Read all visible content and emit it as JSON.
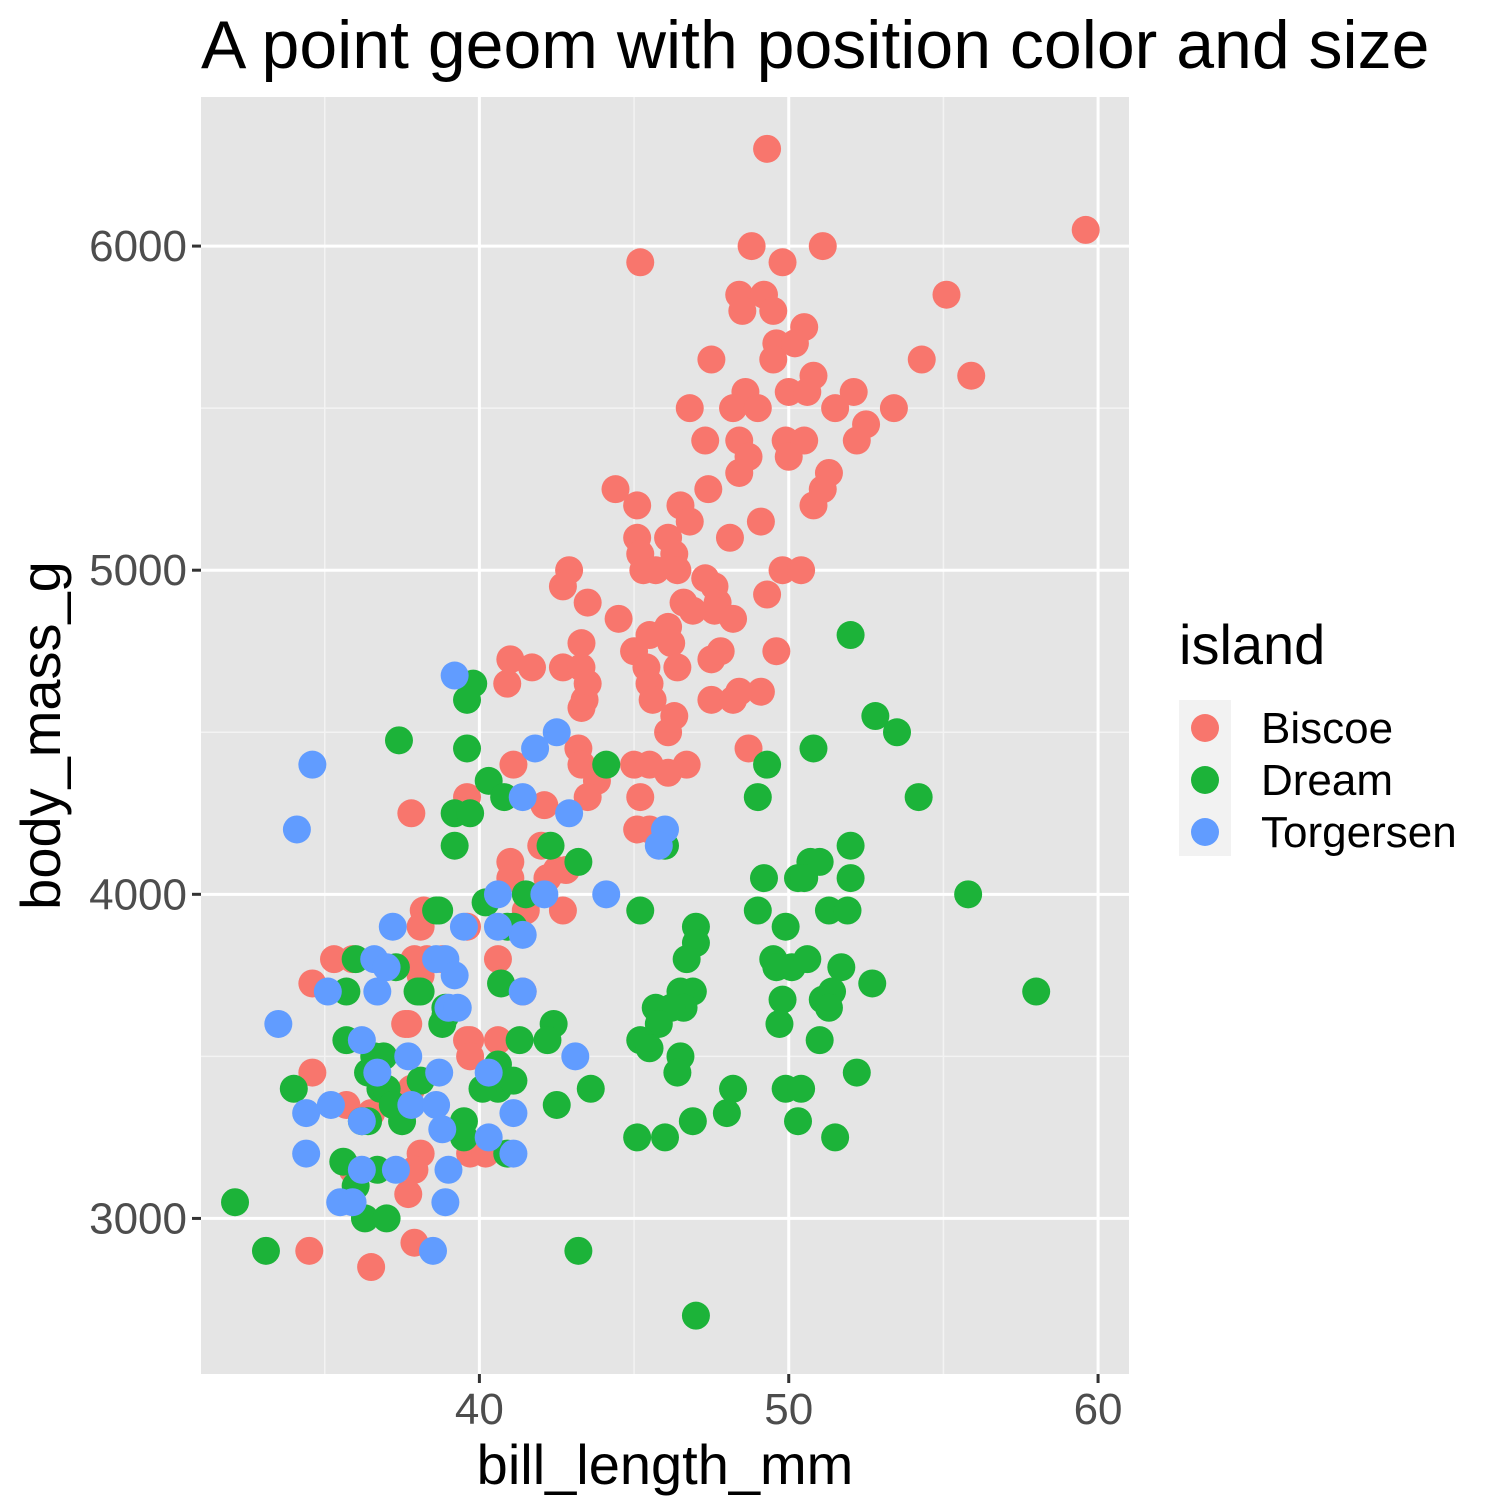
{
  "chart_data": {
    "type": "scatter",
    "title": "A point geom with position color and size",
    "xlabel": "bill_length_mm",
    "ylabel": "body_mass_g",
    "xlim": [
      31.0,
      61.0
    ],
    "ylim": [
      2520,
      6460
    ],
    "x_ticks": [
      40,
      50,
      60
    ],
    "y_ticks": [
      3000,
      4000,
      5000,
      6000
    ],
    "x_minor_ticks": [
      35,
      45,
      55
    ],
    "y_minor_ticks": [
      3500,
      4500,
      5500
    ],
    "grid": true,
    "legend": {
      "title": "island",
      "position": "right"
    },
    "series": [
      {
        "name": "Biscoe",
        "color": "#F8766D",
        "points": [
          [
            49.3,
            6300
          ],
          [
            59.6,
            6050
          ],
          [
            48.8,
            6000
          ],
          [
            51.1,
            6000
          ],
          [
            45.2,
            5950
          ],
          [
            49.8,
            5950
          ],
          [
            48.4,
            5850
          ],
          [
            49.2,
            5850
          ],
          [
            55.1,
            5850
          ],
          [
            48.5,
            5800
          ],
          [
            49.5,
            5800
          ],
          [
            50.5,
            5750
          ],
          [
            49.6,
            5700
          ],
          [
            50.2,
            5700
          ],
          [
            47.5,
            5650
          ],
          [
            49.5,
            5650
          ],
          [
            54.3,
            5650
          ],
          [
            50.8,
            5600
          ],
          [
            55.9,
            5600
          ],
          [
            48.6,
            5550
          ],
          [
            50.0,
            5550
          ],
          [
            50.6,
            5550
          ],
          [
            52.1,
            5550
          ],
          [
            46.8,
            5500
          ],
          [
            48.2,
            5500
          ],
          [
            49.0,
            5500
          ],
          [
            51.5,
            5500
          ],
          [
            53.4,
            5500
          ],
          [
            52.5,
            5450
          ],
          [
            47.3,
            5400
          ],
          [
            48.4,
            5400
          ],
          [
            49.9,
            5400
          ],
          [
            50.5,
            5400
          ],
          [
            52.2,
            5400
          ],
          [
            48.7,
            5350
          ],
          [
            50.0,
            5350
          ],
          [
            48.4,
            5300
          ],
          [
            51.3,
            5300
          ],
          [
            44.4,
            5250
          ],
          [
            47.4,
            5250
          ],
          [
            51.1,
            5250
          ],
          [
            45.1,
            5200
          ],
          [
            46.5,
            5200
          ],
          [
            50.8,
            5200
          ],
          [
            46.8,
            5150
          ],
          [
            49.1,
            5150
          ],
          [
            45.1,
            5100
          ],
          [
            46.1,
            5100
          ],
          [
            48.1,
            5100
          ],
          [
            45.2,
            5050
          ],
          [
            46.3,
            5050
          ],
          [
            45.3,
            5000
          ],
          [
            45.7,
            5000
          ],
          [
            46.4,
            5000
          ],
          [
            42.9,
            5000
          ],
          [
            49.8,
            5000
          ],
          [
            50.4,
            5000
          ],
          [
            42.7,
            4950
          ],
          [
            47.6,
            4950
          ],
          [
            47.3,
            4975
          ],
          [
            43.5,
            4900
          ],
          [
            46.6,
            4900
          ],
          [
            47.7,
            4900
          ],
          [
            46.9,
            4875
          ],
          [
            47.6,
            4875
          ],
          [
            44.5,
            4850
          ],
          [
            48.2,
            4850
          ],
          [
            49.3,
            4925
          ],
          [
            46.1,
            4825
          ],
          [
            45.5,
            4800
          ],
          [
            43.3,
            4775
          ],
          [
            46.2,
            4775
          ],
          [
            41.0,
            4725
          ],
          [
            47.5,
            4725
          ],
          [
            49.6,
            4750
          ],
          [
            45.0,
            4750
          ],
          [
            47.8,
            4750
          ],
          [
            41.7,
            4700
          ],
          [
            42.7,
            4700
          ],
          [
            43.3,
            4700
          ],
          [
            45.4,
            4700
          ],
          [
            46.4,
            4700
          ],
          [
            40.9,
            4650
          ],
          [
            43.5,
            4650
          ],
          [
            45.5,
            4650
          ],
          [
            43.4,
            4600
          ],
          [
            45.6,
            4600
          ],
          [
            47.5,
            4600
          ],
          [
            48.2,
            4600
          ],
          [
            43.3,
            4575
          ],
          [
            46.3,
            4550
          ],
          [
            49.1,
            4625
          ],
          [
            48.4,
            4625
          ],
          [
            46.1,
            4500
          ],
          [
            43.2,
            4450
          ],
          [
            48.7,
            4450
          ],
          [
            41.1,
            4400
          ],
          [
            43.3,
            4400
          ],
          [
            45.0,
            4400
          ],
          [
            45.5,
            4400
          ],
          [
            46.7,
            4400
          ],
          [
            46.1,
            4375
          ],
          [
            43.8,
            4350
          ],
          [
            43.5,
            4300
          ],
          [
            45.2,
            4300
          ],
          [
            39.6,
            4300
          ],
          [
            42.1,
            4275
          ],
          [
            37.8,
            4250
          ],
          [
            45.1,
            4200
          ],
          [
            45.5,
            4200
          ],
          [
            42.0,
            4150
          ],
          [
            41.0,
            4100
          ],
          [
            42.8,
            4075
          ],
          [
            42.5,
            4075
          ],
          [
            41.0,
            4050
          ],
          [
            42.2,
            4050
          ],
          [
            41.5,
            3950
          ],
          [
            38.2,
            3950
          ],
          [
            42.7,
            3950
          ],
          [
            39.6,
            3900
          ],
          [
            38.1,
            3900
          ],
          [
            40.6,
            3800
          ],
          [
            38.3,
            3800
          ],
          [
            37.9,
            3800
          ],
          [
            35.3,
            3800
          ],
          [
            35.9,
            3800
          ],
          [
            38.8,
            3800
          ],
          [
            38.1,
            3750
          ],
          [
            34.6,
            3725
          ],
          [
            41.4,
            3700
          ],
          [
            37.6,
            3600
          ],
          [
            37.7,
            3600
          ],
          [
            39.6,
            3550
          ],
          [
            40.6,
            3550
          ],
          [
            39.7,
            3550
          ],
          [
            39.7,
            3500
          ],
          [
            34.6,
            3450
          ],
          [
            37.8,
            3400
          ],
          [
            35.7,
            3350
          ],
          [
            36.5,
            3325
          ],
          [
            35.9,
            3150
          ],
          [
            38.1,
            3200
          ],
          [
            39.7,
            3200
          ],
          [
            40.2,
            3200
          ],
          [
            37.9,
            3150
          ],
          [
            37.7,
            3075
          ],
          [
            34.5,
            2900
          ],
          [
            37.9,
            2925
          ],
          [
            36.5,
            2850
          ]
        ]
      },
      {
        "name": "Dream",
        "color": "#1CB339",
        "points": [
          [
            52.0,
            4800
          ],
          [
            52.8,
            4550
          ],
          [
            53.5,
            4500
          ],
          [
            50.8,
            4450
          ],
          [
            54.2,
            4300
          ],
          [
            49.3,
            4400
          ],
          [
            49.0,
            4300
          ],
          [
            52.0,
            4150
          ],
          [
            50.7,
            4100
          ],
          [
            51.0,
            4100
          ],
          [
            50.3,
            4050
          ],
          [
            50.5,
            4050
          ],
          [
            52.0,
            4050
          ],
          [
            49.2,
            4050
          ],
          [
            55.8,
            4000
          ],
          [
            45.2,
            3950
          ],
          [
            49.0,
            3950
          ],
          [
            51.3,
            3950
          ],
          [
            51.9,
            3950
          ],
          [
            47.0,
            3900
          ],
          [
            49.9,
            3900
          ],
          [
            47.0,
            3850
          ],
          [
            49.5,
            3800
          ],
          [
            46.7,
            3800
          ],
          [
            50.1,
            3775
          ],
          [
            50.6,
            3800
          ],
          [
            49.6,
            3775
          ],
          [
            51.7,
            3775
          ],
          [
            52.7,
            3725
          ],
          [
            58.0,
            3700
          ],
          [
            46.9,
            3700
          ],
          [
            46.5,
            3700
          ],
          [
            49.8,
            3675
          ],
          [
            51.4,
            3700
          ],
          [
            51.1,
            3675
          ],
          [
            46.6,
            3650
          ],
          [
            45.7,
            3650
          ],
          [
            46.2,
            3650
          ],
          [
            51.3,
            3650
          ],
          [
            45.8,
            3600
          ],
          [
            49.7,
            3600
          ],
          [
            45.2,
            3550
          ],
          [
            45.5,
            3525
          ],
          [
            51.0,
            3550
          ],
          [
            46.5,
            3500
          ],
          [
            46.4,
            3450
          ],
          [
            52.2,
            3450
          ],
          [
            48.2,
            3400
          ],
          [
            49.9,
            3400
          ],
          [
            50.4,
            3400
          ],
          [
            48.0,
            3325
          ],
          [
            46.9,
            3300
          ],
          [
            50.3,
            3300
          ],
          [
            45.1,
            3250
          ],
          [
            46.0,
            3250
          ],
          [
            51.5,
            3250
          ],
          [
            43.2,
            2900
          ],
          [
            47.0,
            2700
          ],
          [
            39.8,
            4650
          ],
          [
            39.6,
            4600
          ],
          [
            37.4,
            4475
          ],
          [
            39.6,
            4450
          ],
          [
            40.3,
            4350
          ],
          [
            40.8,
            4300
          ],
          [
            39.2,
            4250
          ],
          [
            39.7,
            4250
          ],
          [
            42.3,
            4150
          ],
          [
            39.2,
            4150
          ],
          [
            46.0,
            4150
          ],
          [
            43.2,
            4100
          ],
          [
            40.2,
            3975
          ],
          [
            41.5,
            4000
          ],
          [
            38.6,
            3950
          ],
          [
            40.9,
            3900
          ],
          [
            41.1,
            3900
          ],
          [
            44.1,
            4400
          ],
          [
            42.4,
            3600
          ],
          [
            36.0,
            3800
          ],
          [
            37.3,
            3775
          ],
          [
            35.7,
            3700
          ],
          [
            38.1,
            3700
          ],
          [
            40.7,
            3725
          ],
          [
            38.9,
            3650
          ],
          [
            38.9,
            3625
          ],
          [
            38.8,
            3600
          ],
          [
            41.3,
            3550
          ],
          [
            42.2,
            3550
          ],
          [
            35.7,
            3550
          ],
          [
            40.6,
            3475
          ],
          [
            36.6,
            3500
          ],
          [
            36.9,
            3500
          ],
          [
            36.4,
            3450
          ],
          [
            40.6,
            3400
          ],
          [
            38.1,
            3425
          ],
          [
            41.1,
            3425
          ],
          [
            36.8,
            3400
          ],
          [
            32.1,
            3050
          ],
          [
            37.0,
            3400
          ],
          [
            40.1,
            3400
          ],
          [
            43.6,
            3400
          ],
          [
            42.5,
            3350
          ],
          [
            34.0,
            3400
          ],
          [
            37.2,
            3350
          ],
          [
            36.4,
            3300
          ],
          [
            37.5,
            3300
          ],
          [
            39.5,
            3300
          ],
          [
            36.2,
            3300
          ],
          [
            39.5,
            3250
          ],
          [
            35.6,
            3175
          ],
          [
            36.7,
            3150
          ],
          [
            36.0,
            3100
          ],
          [
            40.9,
            3200
          ],
          [
            36.3,
            3000
          ],
          [
            37.0,
            3000
          ],
          [
            33.1,
            2900
          ],
          [
            38.0,
            3700
          ],
          [
            38.7,
            3950
          ]
        ]
      },
      {
        "name": "Torgersen",
        "color": "#619CFF",
        "points": [
          [
            39.2,
            4675
          ],
          [
            34.6,
            4400
          ],
          [
            42.5,
            4500
          ],
          [
            41.8,
            4450
          ],
          [
            41.4,
            4300
          ],
          [
            42.9,
            4250
          ],
          [
            34.1,
            4200
          ],
          [
            46.0,
            4200
          ],
          [
            45.8,
            4150
          ],
          [
            44.1,
            4000
          ],
          [
            40.6,
            4000
          ],
          [
            42.1,
            4000
          ],
          [
            37.2,
            3900
          ],
          [
            39.5,
            3900
          ],
          [
            41.4,
            3875
          ],
          [
            40.6,
            3900
          ],
          [
            36.6,
            3800
          ],
          [
            37.0,
            3775
          ],
          [
            38.6,
            3800
          ],
          [
            38.9,
            3800
          ],
          [
            39.2,
            3750
          ],
          [
            41.4,
            3700
          ],
          [
            35.1,
            3700
          ],
          [
            36.7,
            3700
          ],
          [
            39.0,
            3650
          ],
          [
            39.3,
            3650
          ],
          [
            33.5,
            3600
          ],
          [
            36.2,
            3550
          ],
          [
            43.1,
            3500
          ],
          [
            37.7,
            3500
          ],
          [
            38.7,
            3450
          ],
          [
            40.3,
            3450
          ],
          [
            36.7,
            3450
          ],
          [
            35.2,
            3350
          ],
          [
            37.8,
            3350
          ],
          [
            38.6,
            3350
          ],
          [
            41.1,
            3325
          ],
          [
            34.4,
            3325
          ],
          [
            36.2,
            3300
          ],
          [
            38.8,
            3275
          ],
          [
            40.3,
            3250
          ],
          [
            34.4,
            3200
          ],
          [
            36.2,
            3150
          ],
          [
            37.3,
            3150
          ],
          [
            39.0,
            3150
          ],
          [
            41.1,
            3200
          ],
          [
            35.5,
            3050
          ],
          [
            35.9,
            3050
          ],
          [
            38.9,
            3050
          ],
          [
            38.5,
            2900
          ]
        ]
      }
    ]
  }
}
